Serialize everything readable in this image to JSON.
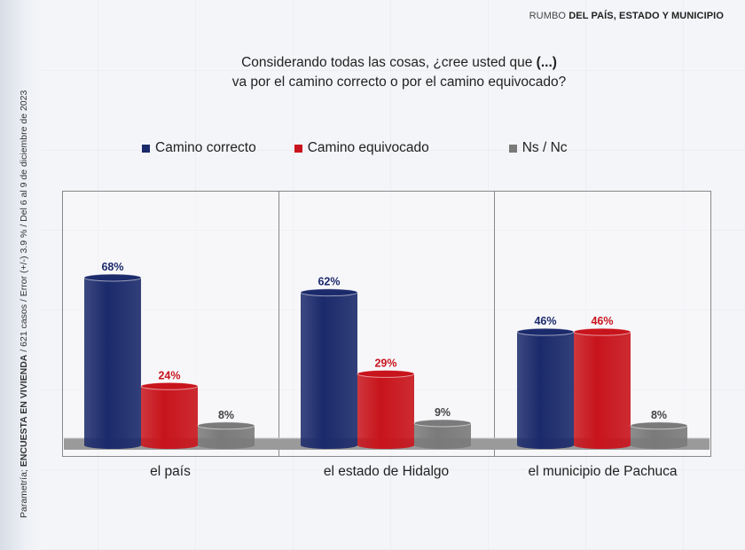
{
  "header": {
    "prefix": "RUMBO ",
    "bold": "DEL PAÍS, ESTADO Y MUNICIPIO"
  },
  "side_note": {
    "prefix": "Parametría; ",
    "bold": "ENCUESTA EN VIVIENDA",
    "rest": " / 621 casos / Error (+/-) 3.9 % / Del 6 al 9 de diciembre de 2023"
  },
  "question": {
    "line1_a": "Considerando todas las cosas, ¿cree usted que ",
    "line1_b": "(...)",
    "line2": "va por el camino correcto o por el camino equivocado?"
  },
  "colors": {
    "correcto": "#1b2a6b",
    "equivocado": "#c8141c",
    "nsnc": "#7a7a7a",
    "label_correcto": "#1b2a6b",
    "label_equivocado": "#c8141c",
    "label_nsnc": "#444444"
  },
  "chart_data": {
    "type": "bar",
    "categories": [
      "el país",
      "el estado de Hidalgo",
      "el municipio de Pachuca"
    ],
    "series": [
      {
        "name": "Camino correcto",
        "values": [
          68,
          62,
          46
        ]
      },
      {
        "name": "Camino equivocado",
        "values": [
          24,
          29,
          46
        ]
      },
      {
        "name": "Ns / Nc",
        "values": [
          8,
          9,
          8
        ]
      }
    ],
    "value_labels": [
      [
        "68%",
        "24%",
        "8%"
      ],
      [
        "62%",
        "29%",
        "9%"
      ],
      [
        "46%",
        "46%",
        "8%"
      ]
    ],
    "unit": "%",
    "ylim": [
      0,
      100
    ],
    "legend_position": "top",
    "grid": false
  }
}
